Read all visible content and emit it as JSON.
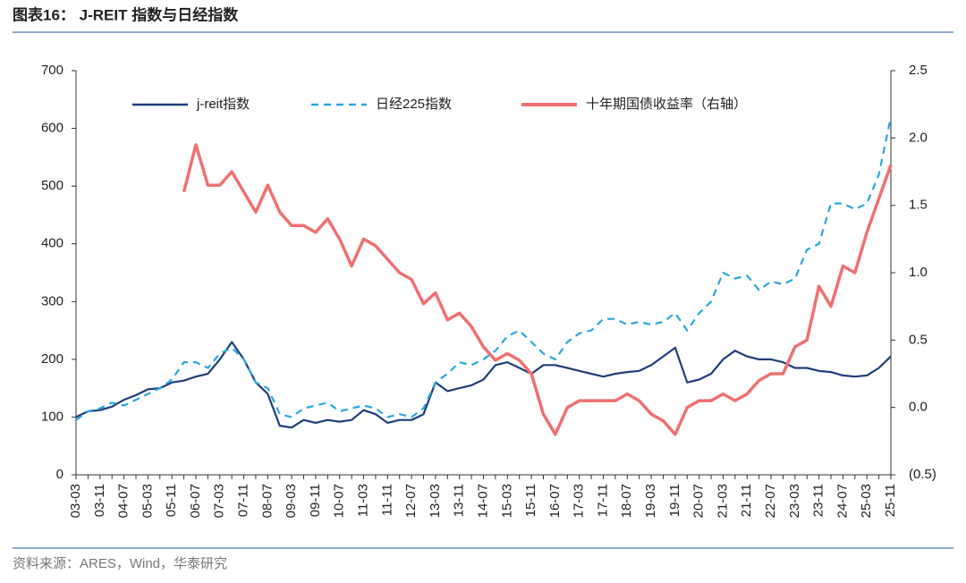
{
  "title": "图表16：  J-REIT 指数与日经指数",
  "source": "资料来源：ARES，Wind，华泰研究",
  "chart_data": {
    "type": "line",
    "categories": [
      "03-03",
      null,
      "03-11",
      null,
      "04-07",
      null,
      "05-03",
      null,
      "05-11",
      null,
      "06-07",
      null,
      "07-03",
      null,
      "07-11",
      null,
      "08-07",
      null,
      "09-03",
      null,
      "09-11",
      null,
      "10-07",
      null,
      "11-03",
      null,
      "11-11",
      null,
      "12-07",
      null,
      "13-03",
      null,
      "13-11",
      null,
      "14-07",
      null,
      "15-03",
      null,
      "15-11",
      null,
      "16-07",
      null,
      "17-03",
      null,
      "17-11",
      null,
      "18-07",
      null,
      "19-03",
      null,
      "19-11",
      null,
      "20-07",
      null,
      "21-03",
      null,
      "21-11",
      null,
      "22-07",
      null,
      "23-03",
      null,
      "23-11",
      null,
      "24-07",
      null,
      "25-03",
      null,
      "25-11"
    ],
    "series": [
      {
        "name": "j-reit指数",
        "color": "#1f3f7a",
        "style": "solid",
        "values": [
          100,
          110,
          112,
          118,
          130,
          138,
          148,
          150,
          160,
          163,
          170,
          175,
          200,
          230,
          200,
          160,
          140,
          85,
          82,
          95,
          90,
          95,
          92,
          95,
          112,
          105,
          90,
          95,
          95,
          105,
          160,
          145,
          150,
          155,
          165,
          190,
          195,
          185,
          175,
          190,
          190,
          185,
          180,
          175,
          170,
          175,
          178,
          180,
          190,
          205,
          220,
          160,
          165,
          175,
          200,
          215,
          205,
          200,
          200,
          195,
          185,
          185,
          180,
          178,
          172,
          170,
          172,
          185,
          205
        ]
      },
      {
        "name": "日经225指数",
        "color": "#2aa7e0",
        "style": "dashed",
        "values": [
          95,
          110,
          115,
          125,
          120,
          130,
          140,
          150,
          165,
          195,
          195,
          185,
          210,
          220,
          200,
          160,
          150,
          105,
          100,
          115,
          120,
          125,
          110,
          115,
          120,
          115,
          100,
          105,
          100,
          115,
          160,
          175,
          195,
          190,
          200,
          215,
          240,
          250,
          230,
          210,
          200,
          230,
          245,
          250,
          270,
          270,
          260,
          265,
          260,
          265,
          280,
          250,
          280,
          300,
          350,
          340,
          345,
          320,
          335,
          330,
          340,
          390,
          400,
          470,
          470,
          460,
          470,
          520,
          620
        ]
      },
      {
        "name": "十年期国债收益率（右轴）",
        "color": "#f07070",
        "style": "thick",
        "axis": "y2",
        "values": [
          null,
          null,
          null,
          null,
          null,
          null,
          null,
          null,
          null,
          1.6,
          1.95,
          1.65,
          1.65,
          1.75,
          1.6,
          1.45,
          1.65,
          1.45,
          1.35,
          1.35,
          1.3,
          1.4,
          1.25,
          1.05,
          1.25,
          1.2,
          1.1,
          1.0,
          0.95,
          0.77,
          0.85,
          0.65,
          0.7,
          0.6,
          0.45,
          0.35,
          0.4,
          0.35,
          0.25,
          -0.05,
          -0.2,
          0.0,
          0.05,
          0.05,
          0.05,
          0.05,
          0.1,
          0.05,
          -0.05,
          -0.1,
          -0.2,
          0.0,
          0.05,
          0.05,
          0.1,
          0.05,
          0.1,
          0.2,
          0.25,
          0.25,
          0.45,
          0.5,
          0.9,
          0.75,
          1.05,
          1.0,
          1.3,
          1.55,
          1.8
        ]
      }
    ],
    "ylim": [
      0,
      700
    ],
    "yticks": [
      0,
      100,
      200,
      300,
      400,
      500,
      600,
      700
    ],
    "y2lim": [
      -0.5,
      2.5
    ],
    "y2ticks": [
      {
        "value": -0.5,
        "label": "(0.5)"
      },
      {
        "value": 0,
        "label": "0.0"
      },
      {
        "value": 0.5,
        "label": "0.5"
      },
      {
        "value": 1,
        "label": "1.0"
      },
      {
        "value": 1.5,
        "label": "1.5"
      },
      {
        "value": 2,
        "label": "2.0"
      },
      {
        "value": 2.5,
        "label": "2.5"
      }
    ],
    "legend": "top"
  }
}
